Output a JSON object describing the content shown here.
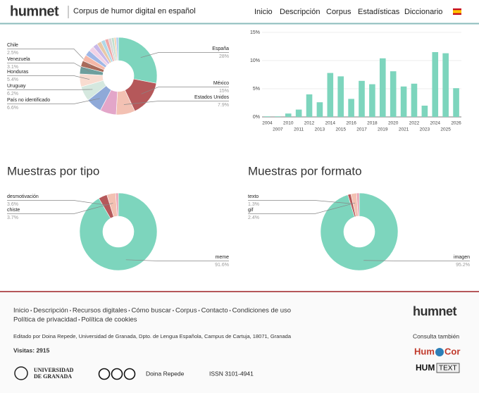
{
  "header": {
    "logo": "humnet",
    "subtitle": "Corpus de humor digital en español",
    "nav": [
      "Inicio",
      "Descripción",
      "Corpus",
      "Estadísticas",
      "Diccionario"
    ]
  },
  "chart_data": [
    {
      "type": "pie",
      "donut": true,
      "categories": [
        "España",
        "México",
        "Estados Unidos",
        null,
        "País no identificado",
        "Uruguay",
        "Honduras",
        "Venezuela",
        "Chile",
        null,
        null,
        null,
        null,
        null,
        null,
        null,
        null,
        null,
        null,
        null,
        null
      ],
      "values": [
        28,
        15,
        7.9,
        6.8,
        6.6,
        6.2,
        5.4,
        3.1,
        2.5,
        2.6,
        2.4,
        2.2,
        2.0,
        1.9,
        1.7,
        1.5,
        1.3,
        1.1,
        0.9,
        0.9,
        0
      ],
      "value_labels": [
        "28%",
        "15%",
        "7.9%",
        null,
        "6.6%",
        "6.2%",
        "5.4%",
        "3.1%",
        "2.5%",
        null,
        null,
        null,
        null,
        null,
        null,
        null,
        null,
        null,
        null,
        null,
        null
      ],
      "colors": [
        "#7dd5bd",
        "#b5585a",
        "#f3c1b3",
        "#e3a6c9",
        "#8fa9d8",
        "#d5e8df",
        "#f9dcd0",
        "#6e9f9d",
        "#a96a5a",
        "#f5b8a8",
        "#9fb7e6",
        "#f1d2e6",
        "#c8b8e8",
        "#e8c9a8",
        "#b0d8e8",
        "#f0a8a8",
        "#d8d8d8",
        "#c0e0d0",
        "#f5d5b5",
        "#a8c8f0",
        "#e0b8d0"
      ]
    },
    {
      "type": "bar",
      "color": "#7dd5bd",
      "grid": true,
      "categories": [
        "2004",
        "2007",
        "2010",
        "2011",
        "2012",
        "2013",
        "2014",
        "2015",
        "2016",
        "2017",
        "2018",
        "2019",
        "2020",
        "2021",
        "2022",
        "2023",
        "2024",
        "2025",
        "2026"
      ],
      "values": [
        0.1,
        0.1,
        0.6,
        1.3,
        4.0,
        2.6,
        7.8,
        7.2,
        3.2,
        6.4,
        5.8,
        10.4,
        8.1,
        5.4,
        5.9,
        2.0,
        11.5,
        11.3,
        5.1
      ],
      "ylim": [
        0,
        15
      ],
      "yticks": [
        {
          "value": 0,
          "label": "0%"
        },
        {
          "value": 5,
          "label": "5%"
        },
        {
          "value": 10,
          "label": "10%"
        },
        {
          "value": 15,
          "label": "15%"
        }
      ]
    },
    {
      "type": "pie",
      "donut": true,
      "title": "Muestras por tipo",
      "categories": [
        "meme",
        "desmotivación",
        "chiste",
        null
      ],
      "values": [
        91.6,
        3.6,
        3.7,
        1.1
      ],
      "value_labels": [
        "91.6%",
        "3.6%",
        "3.7%",
        null
      ],
      "colors": [
        "#7dd5bd",
        "#b5585a",
        "#f3c1b3",
        "#e8a5b5"
      ]
    },
    {
      "type": "pie",
      "donut": true,
      "title": "Muestras por formato",
      "categories": [
        "imagen",
        "texto",
        "gif",
        null
      ],
      "values": [
        95.2,
        1.3,
        2.4,
        1.1
      ],
      "value_labels": [
        "95.2%",
        "1.3%",
        "2.4%",
        null
      ],
      "colors": [
        "#7dd5bd",
        "#b5585a",
        "#f3c1b3",
        "#e8a5b5"
      ]
    }
  ],
  "footer": {
    "links": [
      "Inicio",
      "Descripción",
      "Recursos digitales",
      "Cómo buscar",
      "Corpus",
      "Contacto",
      "Condiciones de uso"
    ],
    "links2": [
      "Política de privacidad",
      "Política de cookies"
    ],
    "credit": "Editado por Doina Repede, Universidad de Granada, Dpto. de Lengua Española, Campus de Cartuja, 18071, Granada",
    "visits": "Visitas: 2915",
    "university": [
      "UNIVERSIDAD",
      "DE GRANADA"
    ],
    "author": "Doina Repede",
    "issn": "ISSN 3101-4941",
    "logo": "humnet",
    "see_also": "Consulta también",
    "humorcor": [
      "Hum",
      "Cor"
    ],
    "humtext": [
      "HUM",
      "TEXT"
    ]
  }
}
